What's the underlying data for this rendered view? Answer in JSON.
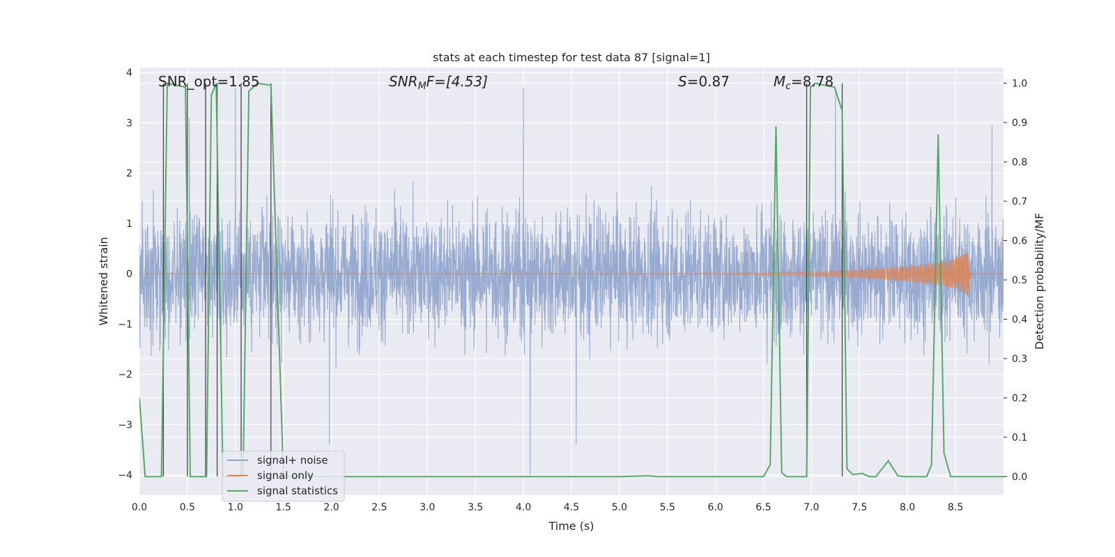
{
  "chart_data": {
    "type": "line",
    "title": "stats at each timestep for test data 87 [signal=1]",
    "xlabel": "Time (s)",
    "ylabel": "Whitened strain",
    "y2label": "Detection probability/MF",
    "xlim": [
      0.0,
      9.0
    ],
    "ylim": [
      -4.4,
      4.1
    ],
    "y2lim": [
      -0.047,
      1.04
    ],
    "xticks": [
      "0.0",
      "0.5",
      "1.0",
      "1.5",
      "2.0",
      "2.5",
      "3.0",
      "3.5",
      "4.0",
      "4.5",
      "5.0",
      "5.5",
      "6.0",
      "6.5",
      "7.0",
      "7.5",
      "8.0",
      "8.5"
    ],
    "yticks": [
      "4",
      "3",
      "2",
      "1",
      "0",
      "−1",
      "−2",
      "−3",
      "−4"
    ],
    "y2ticks": [
      "1.0",
      "0.9",
      "0.8",
      "0.7",
      "0.6",
      "0.5",
      "0.4",
      "0.3",
      "0.2",
      "0.1",
      "0.0"
    ],
    "grid": true,
    "legend_position": "lower-left",
    "annotations": {
      "snr_opt": "SNR_opt=1.85",
      "snr_mf_a": "SNR",
      "snr_mf_b": "M",
      "snr_mf_c": "F=[4.53]",
      "s": "S",
      "s_val": "=0.87",
      "mc_a": "M",
      "mc_b": "c",
      "mc_c": "=8.78"
    },
    "series": [
      {
        "name": "signal+ noise",
        "color": "#8ea3cc",
        "description": "whitened strain: dense noise, core amplitude ~±1.4 with spikes up to ~3.7 and down to ~-4.0",
        "spike_extremes": [
          [
            0.52,
            3.1
          ],
          [
            1.0,
            3.7
          ],
          [
            4.0,
            3.7
          ],
          [
            7.25,
            3.7
          ],
          [
            4.07,
            -4.0
          ],
          [
            4.55,
            -3.4
          ],
          [
            1.98,
            -3.4
          ],
          [
            8.88,
            2.95
          ]
        ]
      },
      {
        "name": "signal only",
        "color": "#dd8452",
        "description": "chirp near 0, amplitude growing until t≈8.65 s",
        "envelope": [
          [
            0.0,
            0.0
          ],
          [
            6.0,
            0.01
          ],
          [
            7.0,
            0.04
          ],
          [
            7.5,
            0.08
          ],
          [
            8.0,
            0.15
          ],
          [
            8.3,
            0.22
          ],
          [
            8.5,
            0.3
          ],
          [
            8.63,
            0.45
          ],
          [
            8.66,
            0.0
          ]
        ]
      },
      {
        "name": "signal statistics",
        "color": "#55a868",
        "axis": "right",
        "x": [
          0.0,
          0.06,
          0.23,
          0.29,
          0.48,
          0.53,
          0.57,
          0.7,
          0.75,
          0.8,
          0.87,
          1.02,
          1.08,
          1.14,
          1.23,
          1.37,
          1.5,
          2.0,
          3.0,
          4.0,
          5.0,
          5.3,
          5.4,
          6.0,
          6.5,
          6.57,
          6.63,
          6.69,
          6.74,
          6.85,
          6.95,
          6.99,
          7.04,
          7.24,
          7.32,
          7.37,
          7.43,
          7.53,
          7.6,
          7.67,
          7.8,
          7.9,
          7.97,
          8.0,
          8.2,
          8.25,
          8.32,
          8.38,
          8.45,
          8.6,
          9.0
        ],
        "values": [
          0.2,
          0.0,
          0.0,
          1.0,
          0.99,
          0.0,
          0.0,
          0.0,
          0.97,
          1.0,
          0.0,
          0.0,
          0.0,
          0.98,
          1.0,
          0.995,
          0.0,
          0.0,
          0.0,
          0.0,
          0.0,
          0.002,
          0.0,
          0.0,
          0.0,
          0.03,
          0.89,
          0.01,
          0.0,
          0.0,
          0.0,
          0.99,
          1.0,
          0.99,
          0.93,
          0.02,
          0.005,
          0.008,
          0.0,
          0.0,
          0.04,
          0.002,
          0.0,
          0.0,
          0.0,
          0.03,
          0.87,
          0.06,
          0.0,
          0.0,
          0.0
        ]
      }
    ],
    "vertical_lines_x": [
      0.25,
      0.5,
      0.69,
      0.81,
      1.06,
      1.37,
      6.95,
      7.32
    ]
  }
}
